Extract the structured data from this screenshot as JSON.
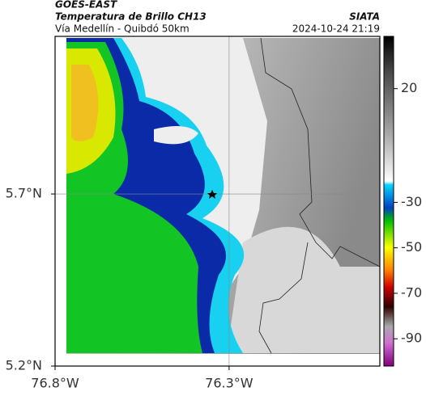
{
  "header": {
    "satellite": "GOES-EAST",
    "product": "Temperatura de Brillo CH13",
    "route": "Vía Medellín - Quibdó 50km",
    "agency": "SIATA",
    "timestamp": "2024-10-24 21:19"
  },
  "map": {
    "xlim": [
      -76.8,
      -75.867
    ],
    "ylim": [
      5.2,
      6.158
    ],
    "xticks": [
      {
        "value": -76.8,
        "label": "76.8°W"
      },
      {
        "value": -76.3,
        "label": "76.3°W"
      }
    ],
    "yticks": [
      {
        "value": 5.7,
        "label": "5.7°N"
      },
      {
        "value": 5.2,
        "label": "5.2°N"
      }
    ]
  },
  "colorbar": {
    "clim": [
      -102,
      43
    ],
    "ticks": [
      20,
      -30,
      -50,
      -70,
      -90
    ]
  }
}
